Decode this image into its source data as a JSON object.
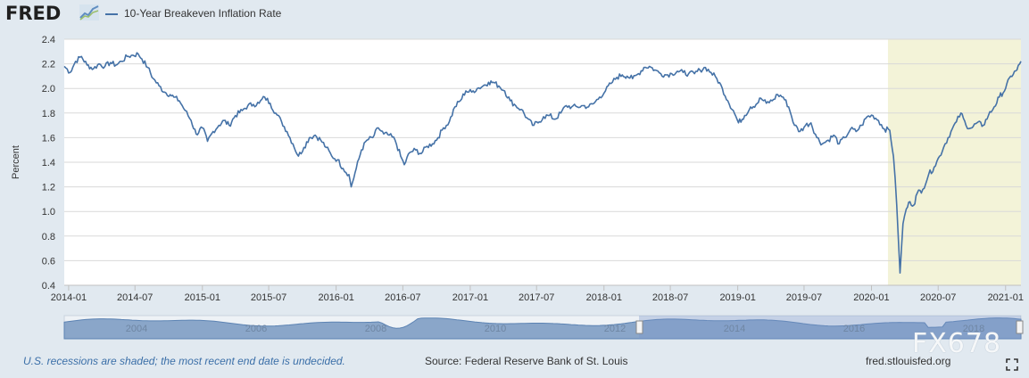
{
  "header": {
    "logo_text": "FRED",
    "series_name": "10-Year Breakeven Inflation Rate"
  },
  "footer": {
    "recession_note": "U.S. recessions are shaded; the most recent end date is undecided.",
    "source": "Source: Federal Reserve Bank of St. Louis",
    "url": "fred.stlouisfed.org",
    "watermark": "FX678"
  },
  "colors": {
    "line": "#4572a7",
    "recession": "#f3f3d8",
    "background": "#e1e9f0",
    "navigator_fill": "#8aa6c9",
    "navigator_selected": "#b9c9e0"
  },
  "chart_data": {
    "type": "line",
    "title": "10-Year Breakeven Inflation Rate",
    "xlabel": "",
    "ylabel": "Percent",
    "ylim": [
      0.4,
      2.4
    ],
    "yticks": [
      "0.4",
      "0.6",
      "0.8",
      "1.0",
      "1.2",
      "1.4",
      "1.6",
      "1.8",
      "2.0",
      "2.2",
      "2.4"
    ],
    "xticks": [
      "2014-01",
      "2014-07",
      "2015-01",
      "2015-07",
      "2016-01",
      "2016-07",
      "2017-01",
      "2017-07",
      "2018-01",
      "2018-07",
      "2019-01",
      "2019-07",
      "2020-01",
      "2020-07",
      "2021-01"
    ],
    "xlim": [
      "2013-12-20",
      "2021-02-12"
    ],
    "grid": "horizontal",
    "recession": {
      "start": "2020-02-15",
      "end": "2021-02-12"
    },
    "series": [
      {
        "name": "10-Year Breakeven Inflation Rate",
        "points": [
          [
            "2013-12-20",
            2.18
          ],
          [
            "2014-01-05",
            2.13
          ],
          [
            "2014-01-20",
            2.22
          ],
          [
            "2014-02-05",
            2.26
          ],
          [
            "2014-02-20",
            2.19
          ],
          [
            "2014-03-10",
            2.16
          ],
          [
            "2014-03-25",
            2.2
          ],
          [
            "2014-04-10",
            2.18
          ],
          [
            "2014-04-25",
            2.21
          ],
          [
            "2014-05-10",
            2.19
          ],
          [
            "2014-05-25",
            2.22
          ],
          [
            "2014-06-10",
            2.26
          ],
          [
            "2014-06-25",
            2.27
          ],
          [
            "2014-07-10",
            2.28
          ],
          [
            "2014-07-20",
            2.24
          ],
          [
            "2014-08-05",
            2.17
          ],
          [
            "2014-08-20",
            2.08
          ],
          [
            "2014-09-05",
            2.02
          ],
          [
            "2014-09-20",
            1.97
          ],
          [
            "2014-10-05",
            1.95
          ],
          [
            "2014-10-15",
            1.93
          ],
          [
            "2014-10-30",
            1.9
          ],
          [
            "2014-11-15",
            1.82
          ],
          [
            "2014-12-01",
            1.74
          ],
          [
            "2014-12-15",
            1.63
          ],
          [
            "2015-01-01",
            1.68
          ],
          [
            "2015-01-15",
            1.57
          ],
          [
            "2015-01-30",
            1.65
          ],
          [
            "2015-02-15",
            1.7
          ],
          [
            "2015-03-01",
            1.74
          ],
          [
            "2015-03-15",
            1.7
          ],
          [
            "2015-04-01",
            1.78
          ],
          [
            "2015-04-20",
            1.82
          ],
          [
            "2015-05-05",
            1.86
          ],
          [
            "2015-05-20",
            1.87
          ],
          [
            "2015-06-05",
            1.88
          ],
          [
            "2015-06-20",
            1.93
          ],
          [
            "2015-07-05",
            1.88
          ],
          [
            "2015-07-20",
            1.8
          ],
          [
            "2015-08-05",
            1.73
          ],
          [
            "2015-08-20",
            1.65
          ],
          [
            "2015-09-05",
            1.55
          ],
          [
            "2015-09-20",
            1.45
          ],
          [
            "2015-10-05",
            1.52
          ],
          [
            "2015-10-20",
            1.6
          ],
          [
            "2015-11-05",
            1.62
          ],
          [
            "2015-11-20",
            1.58
          ],
          [
            "2015-12-05",
            1.52
          ],
          [
            "2015-12-20",
            1.45
          ],
          [
            "2016-01-05",
            1.42
          ],
          [
            "2016-01-20",
            1.35
          ],
          [
            "2016-02-05",
            1.3
          ],
          [
            "2016-02-11",
            1.2
          ],
          [
            "2016-02-25",
            1.35
          ],
          [
            "2016-03-10",
            1.5
          ],
          [
            "2016-03-25",
            1.58
          ],
          [
            "2016-04-10",
            1.6
          ],
          [
            "2016-04-25",
            1.68
          ],
          [
            "2016-05-10",
            1.63
          ],
          [
            "2016-05-25",
            1.62
          ],
          [
            "2016-06-10",
            1.58
          ],
          [
            "2016-06-25",
            1.45
          ],
          [
            "2016-07-05",
            1.38
          ],
          [
            "2016-07-20",
            1.48
          ],
          [
            "2016-08-05",
            1.5
          ],
          [
            "2016-08-20",
            1.47
          ],
          [
            "2016-09-05",
            1.53
          ],
          [
            "2016-09-20",
            1.55
          ],
          [
            "2016-10-05",
            1.6
          ],
          [
            "2016-10-20",
            1.68
          ],
          [
            "2016-11-05",
            1.73
          ],
          [
            "2016-11-20",
            1.85
          ],
          [
            "2016-12-05",
            1.9
          ],
          [
            "2016-12-20",
            1.98
          ],
          [
            "2017-01-05",
            1.97
          ],
          [
            "2017-01-20",
            2.0
          ],
          [
            "2017-02-05",
            2.02
          ],
          [
            "2017-02-20",
            2.05
          ],
          [
            "2017-03-05",
            2.05
          ],
          [
            "2017-03-20",
            2.02
          ],
          [
            "2017-04-05",
            1.98
          ],
          [
            "2017-04-20",
            1.9
          ],
          [
            "2017-05-05",
            1.86
          ],
          [
            "2017-05-20",
            1.83
          ],
          [
            "2017-06-05",
            1.76
          ],
          [
            "2017-06-20",
            1.7
          ],
          [
            "2017-07-05",
            1.72
          ],
          [
            "2017-07-20",
            1.77
          ],
          [
            "2017-08-05",
            1.78
          ],
          [
            "2017-08-20",
            1.75
          ],
          [
            "2017-09-05",
            1.8
          ],
          [
            "2017-09-20",
            1.86
          ],
          [
            "2017-10-05",
            1.85
          ],
          [
            "2017-10-20",
            1.85
          ],
          [
            "2017-11-05",
            1.86
          ],
          [
            "2017-11-20",
            1.85
          ],
          [
            "2017-12-05",
            1.88
          ],
          [
            "2017-12-20",
            1.93
          ],
          [
            "2018-01-05",
            1.98
          ],
          [
            "2018-01-20",
            2.04
          ],
          [
            "2018-02-05",
            2.09
          ],
          [
            "2018-02-20",
            2.11
          ],
          [
            "2018-03-05",
            2.1
          ],
          [
            "2018-03-20",
            2.08
          ],
          [
            "2018-04-05",
            2.12
          ],
          [
            "2018-04-20",
            2.17
          ],
          [
            "2018-05-05",
            2.18
          ],
          [
            "2018-05-20",
            2.15
          ],
          [
            "2018-06-05",
            2.12
          ],
          [
            "2018-06-20",
            2.11
          ],
          [
            "2018-07-05",
            2.12
          ],
          [
            "2018-07-20",
            2.14
          ],
          [
            "2018-08-05",
            2.13
          ],
          [
            "2018-08-20",
            2.12
          ],
          [
            "2018-09-05",
            2.12
          ],
          [
            "2018-09-20",
            2.15
          ],
          [
            "2018-10-05",
            2.17
          ],
          [
            "2018-10-20",
            2.13
          ],
          [
            "2018-11-05",
            2.08
          ],
          [
            "2018-11-20",
            2.0
          ],
          [
            "2018-12-05",
            1.9
          ],
          [
            "2018-12-20",
            1.82
          ],
          [
            "2019-01-03",
            1.72
          ],
          [
            "2019-01-20",
            1.78
          ],
          [
            "2019-02-05",
            1.85
          ],
          [
            "2019-02-20",
            1.87
          ],
          [
            "2019-03-05",
            1.92
          ],
          [
            "2019-03-20",
            1.88
          ],
          [
            "2019-04-05",
            1.9
          ],
          [
            "2019-04-20",
            1.95
          ],
          [
            "2019-05-05",
            1.93
          ],
          [
            "2019-05-20",
            1.85
          ],
          [
            "2019-06-05",
            1.7
          ],
          [
            "2019-06-20",
            1.65
          ],
          [
            "2019-07-05",
            1.7
          ],
          [
            "2019-07-20",
            1.72
          ],
          [
            "2019-08-05",
            1.6
          ],
          [
            "2019-08-20",
            1.55
          ],
          [
            "2019-09-05",
            1.58
          ],
          [
            "2019-09-20",
            1.62
          ],
          [
            "2019-10-05",
            1.55
          ],
          [
            "2019-10-20",
            1.6
          ],
          [
            "2019-11-05",
            1.67
          ],
          [
            "2019-11-20",
            1.65
          ],
          [
            "2019-12-05",
            1.7
          ],
          [
            "2019-12-20",
            1.77
          ],
          [
            "2020-01-05",
            1.78
          ],
          [
            "2020-01-20",
            1.74
          ],
          [
            "2020-02-05",
            1.67
          ],
          [
            "2020-02-20",
            1.66
          ],
          [
            "2020-03-01",
            1.45
          ],
          [
            "2020-03-10",
            1.05
          ],
          [
            "2020-03-19",
            0.5
          ],
          [
            "2020-03-27",
            0.9
          ],
          [
            "2020-04-05",
            1.02
          ],
          [
            "2020-04-15",
            1.08
          ],
          [
            "2020-04-25",
            1.05
          ],
          [
            "2020-05-05",
            1.15
          ],
          [
            "2020-05-20",
            1.18
          ],
          [
            "2020-06-05",
            1.3
          ],
          [
            "2020-06-20",
            1.36
          ],
          [
            "2020-07-05",
            1.45
          ],
          [
            "2020-07-20",
            1.55
          ],
          [
            "2020-08-05",
            1.65
          ],
          [
            "2020-08-20",
            1.73
          ],
          [
            "2020-09-01",
            1.8
          ],
          [
            "2020-09-15",
            1.7
          ],
          [
            "2020-10-01",
            1.68
          ],
          [
            "2020-10-15",
            1.72
          ],
          [
            "2020-11-01",
            1.7
          ],
          [
            "2020-11-15",
            1.78
          ],
          [
            "2020-12-01",
            1.85
          ],
          [
            "2020-12-15",
            1.93
          ],
          [
            "2021-01-01",
            2.0
          ],
          [
            "2021-01-15",
            2.1
          ],
          [
            "2021-02-01",
            2.15
          ],
          [
            "2021-02-12",
            2.22
          ]
        ]
      }
    ],
    "navigator": {
      "labels": [
        "2004",
        "2006",
        "2008",
        "2010",
        "2012",
        "2014",
        "2016",
        "2018"
      ],
      "selection_start": "2014-01",
      "selection_end": "2021-02"
    }
  }
}
